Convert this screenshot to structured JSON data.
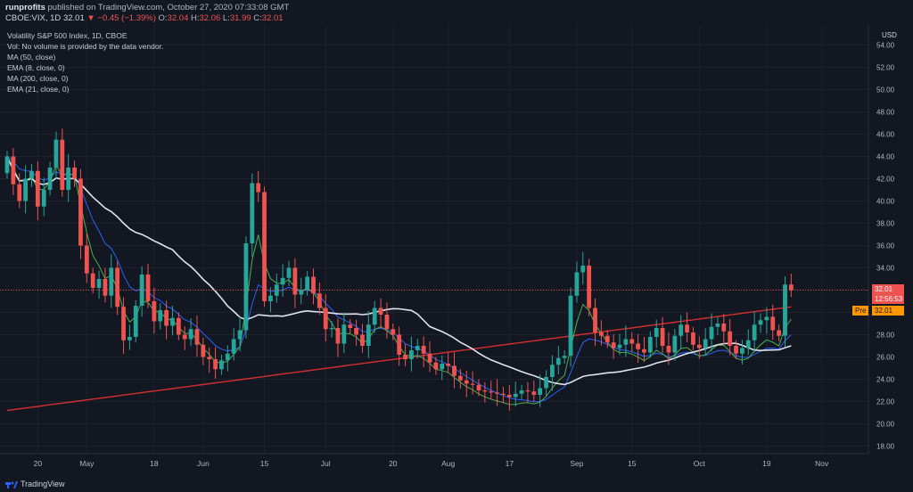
{
  "header": {
    "publisher": "runprofits",
    "published_text": "published on TradingView.com, October 27, 2020 07:33:08 GMT",
    "symbol": "CBOE:VIX, 1D",
    "price": "32.01",
    "change": "▼ −0.45 (−1.39%)",
    "o_label": "O:",
    "o_value": "32.04",
    "h_label": "H:",
    "h_value": "32.06",
    "l_label": "L:",
    "l_value": "31.99",
    "c_label": "C:",
    "c_value": "32.01"
  },
  "legend": {
    "title": "Volatility S&P 500 Index, 1D, CBOE",
    "vol": "Vol: No volume is provided by the data vendor.",
    "ma50": "MA (50, close)",
    "ema8": "EMA (8, close, 0)",
    "ma200": "MA (200, close, 0)",
    "ema21": "EMA (21, close, 0)"
  },
  "price_axis": {
    "currency": "USD",
    "last_price": "32.01",
    "countdown": "12:56:53",
    "pre_label": "Pre",
    "pre_price": "32.01"
  },
  "footer": {
    "brand": "TradingView"
  },
  "colors": {
    "background": "#131722",
    "up": "#26a69a",
    "down": "#ef5350",
    "ma50": "#e0e3eb",
    "ema8": "#4caf50",
    "ma200": "#d32f2f",
    "ema21": "#2962ff",
    "last_price_tag": "#ef5350",
    "pre_tag": "#ff9800"
  },
  "chart_data": {
    "type": "candlestick",
    "y_ticks": [
      18,
      20,
      22,
      24,
      26,
      28,
      30,
      32,
      34,
      36,
      38,
      40,
      42,
      44,
      46,
      48,
      50,
      52,
      54
    ],
    "y_tick_labels": [
      "18.00",
      "20.00",
      "22.00",
      "24.00",
      "26.00",
      "28.00",
      "30.00",
      "32.00",
      "34.00",
      "36.00",
      "38.00",
      "40.00",
      "42.00",
      "44.00",
      "46.00",
      "48.00",
      "50.00",
      "52.00",
      "54.00"
    ],
    "ylim": [
      17.2,
      55.5
    ],
    "x_ticks": [
      {
        "bar": 5,
        "label": "20"
      },
      {
        "bar": 13,
        "label": "May"
      },
      {
        "bar": 24,
        "label": "18"
      },
      {
        "bar": 32,
        "label": "Jun"
      },
      {
        "bar": 42,
        "label": "15"
      },
      {
        "bar": 52,
        "label": "Jul"
      },
      {
        "bar": 63,
        "label": "20"
      },
      {
        "bar": 72,
        "label": "Aug"
      },
      {
        "bar": 82,
        "label": "17"
      },
      {
        "bar": 93,
        "label": "Sep"
      },
      {
        "bar": 102,
        "label": "15"
      },
      {
        "bar": 113,
        "label": "Oct"
      },
      {
        "bar": 124,
        "label": "19"
      },
      {
        "bar": 133,
        "label": "Nov"
      }
    ],
    "closes": [
      44.0,
      41.5,
      40.0,
      42.0,
      42.7,
      39.5,
      41.0,
      43.0,
      45.5,
      41.0,
      43.0,
      42.0,
      36.0,
      33.5,
      32.2,
      33.0,
      31.5,
      34.0,
      30.5,
      27.5,
      27.8,
      30.6,
      33.4,
      31.0,
      29.2,
      30.2,
      28.8,
      29.5,
      28.0,
      27.6,
      28.5,
      27.1,
      26.0,
      25.8,
      24.9,
      25.7,
      26.3,
      27.6,
      28.4,
      36.2,
      41.6,
      40.8,
      31.0,
      31.5,
      32.5,
      33.1,
      34.0,
      31.6,
      32.0,
      33.2,
      31.7,
      30.4,
      28.5,
      28.6,
      27.2,
      28.9,
      28.6,
      28.0,
      27.0,
      28.9,
      30.4,
      29.8,
      28.5,
      28.0,
      26.2,
      25.8,
      26.6,
      27.0,
      26.3,
      25.5,
      24.9,
      25.4,
      25.2,
      24.3,
      23.9,
      23.6,
      23.5,
      23.0,
      22.9,
      22.8,
      22.7,
      22.6,
      22.4,
      22.7,
      23.0,
      22.9,
      22.6,
      23.2,
      24.2,
      25.3,
      25.9,
      26.1,
      31.5,
      33.6,
      34.2,
      30.4,
      28.2,
      27.9,
      27.3,
      26.8,
      27.1,
      27.6,
      27.2,
      26.7,
      26.4,
      27.8,
      28.6,
      27.0,
      26.4,
      27.9,
      28.9,
      28.2,
      27.1,
      26.8,
      27.6,
      28.7,
      29.0,
      28.3,
      27.0,
      26.3,
      26.8,
      27.5,
      28.9,
      29.3,
      29.6,
      28.4,
      27.9,
      32.5,
      32.0
    ],
    "ma50_last": 27.0,
    "ema8_last": 29.4,
    "ema21_last": 28.0,
    "ma200_last": 30.5,
    "last": 32.01
  }
}
